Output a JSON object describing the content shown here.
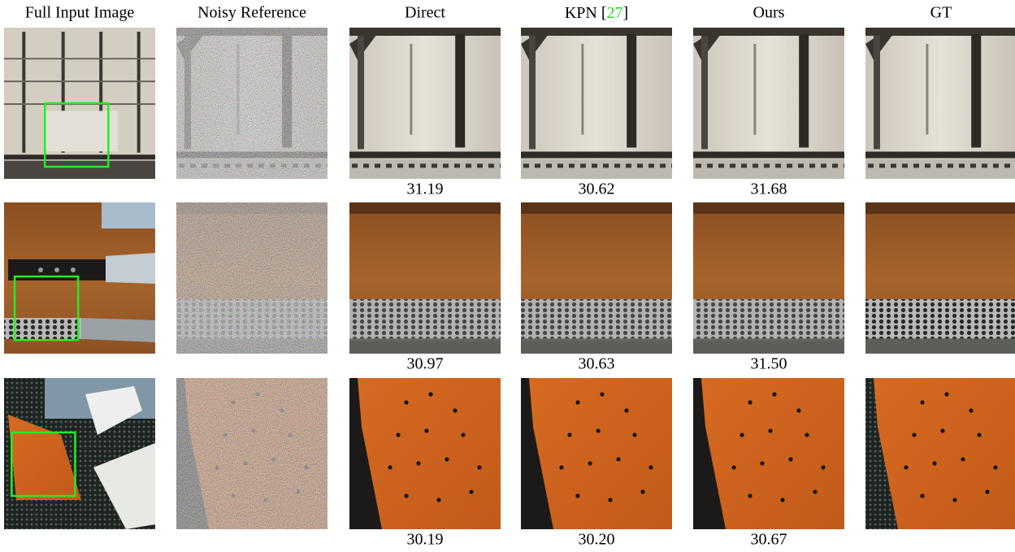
{
  "columns": [
    "Full Input Image",
    "Noisy Reference",
    "Direct",
    {
      "name": "KPN",
      "cite_open": "[",
      "cite": "27",
      "cite_close": "]"
    },
    "Ours",
    "GT"
  ],
  "rows": [
    {
      "psnr": [
        "31.19",
        "30.62",
        "31.68"
      ]
    },
    {
      "psnr": [
        "30.97",
        "30.63",
        "31.50"
      ]
    },
    {
      "psnr": [
        "30.19",
        "30.20",
        "30.67"
      ]
    }
  ]
}
